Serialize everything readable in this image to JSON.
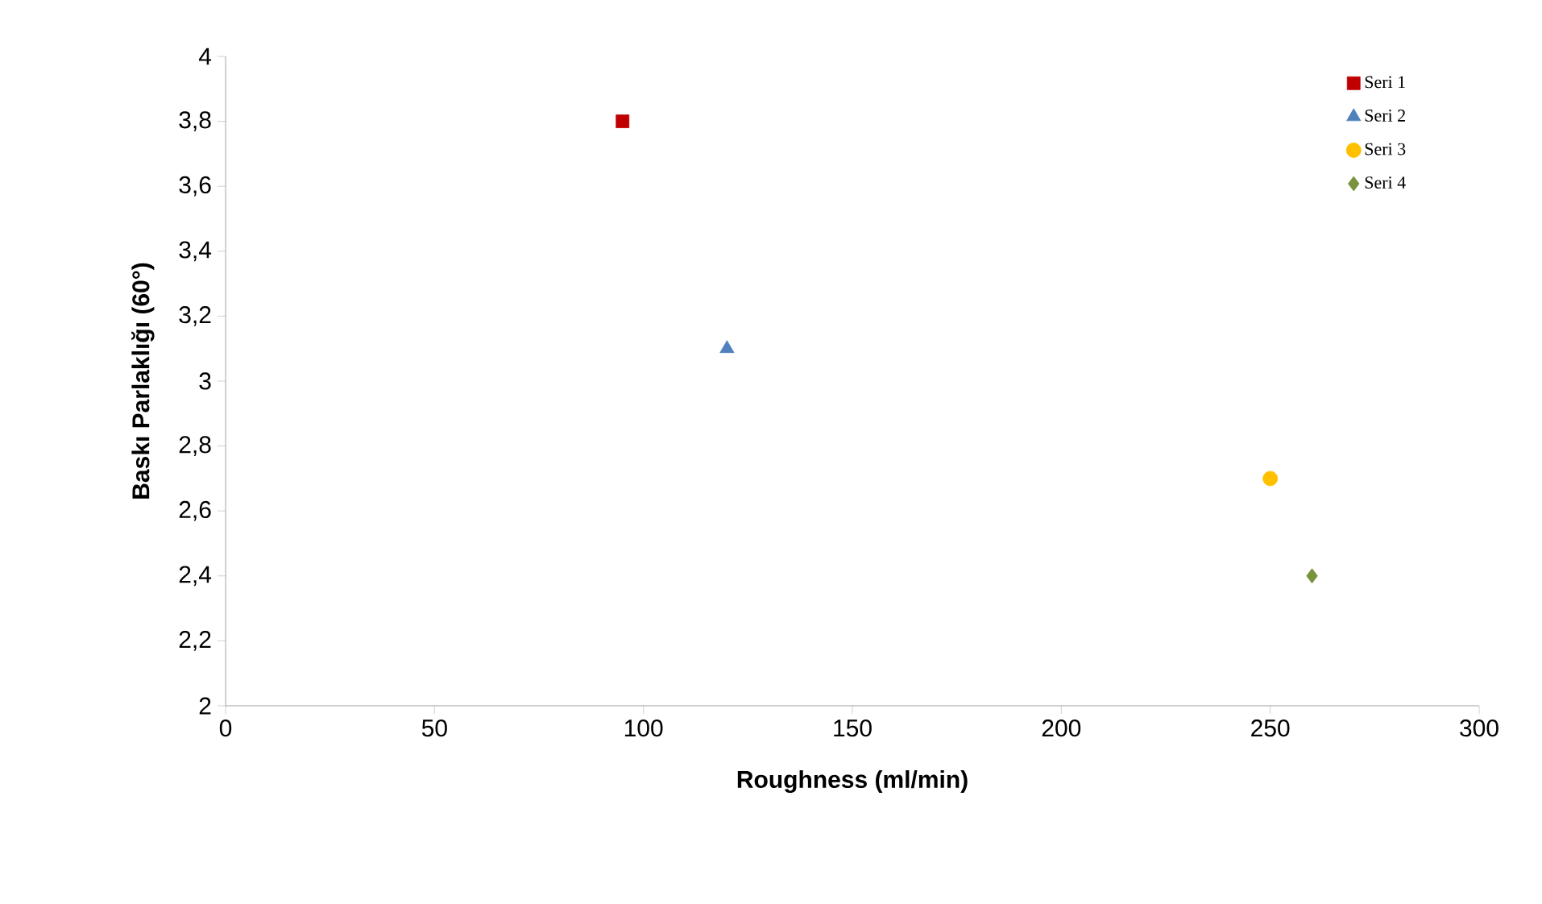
{
  "chart_data": {
    "type": "scatter",
    "xlabel": "Roughness (ml/min)",
    "ylabel": "Baskı Parlaklığı (60°)",
    "xlim": [
      0,
      300
    ],
    "xticks": [
      0,
      50,
      100,
      150,
      200,
      250,
      300
    ],
    "ylim": [
      2,
      4
    ],
    "yticks": [
      2,
      {
        "value": 2.2,
        "label": "2,2"
      },
      {
        "value": 2.4,
        "label": "2,4"
      },
      {
        "value": 2.6,
        "label": "2,6"
      },
      {
        "value": 2.8,
        "label": "2,8"
      },
      3,
      {
        "value": 3.2,
        "label": "3,2"
      },
      {
        "value": 3.4,
        "label": "3,4"
      },
      {
        "value": 3.6,
        "label": "3,6"
      },
      {
        "value": 3.8,
        "label": "3,8"
      },
      4
    ],
    "grid": false,
    "legend": "top right",
    "series": [
      {
        "name": "Seri 1",
        "color": "#c00000",
        "marker": "square",
        "x": [
          95
        ],
        "values": [
          3.8
        ]
      },
      {
        "name": "Seri 2",
        "color": "#4f81bd",
        "marker": "triangle",
        "x": [
          120
        ],
        "values": [
          3.1
        ]
      },
      {
        "name": "Seri 3",
        "color": "#ffc000",
        "marker": "circle",
        "x": [
          250
        ],
        "values": [
          2.7
        ]
      },
      {
        "name": "Seri 4",
        "color": "#77933c",
        "marker": "diamond",
        "x": [
          260
        ],
        "values": [
          2.4
        ]
      }
    ]
  }
}
